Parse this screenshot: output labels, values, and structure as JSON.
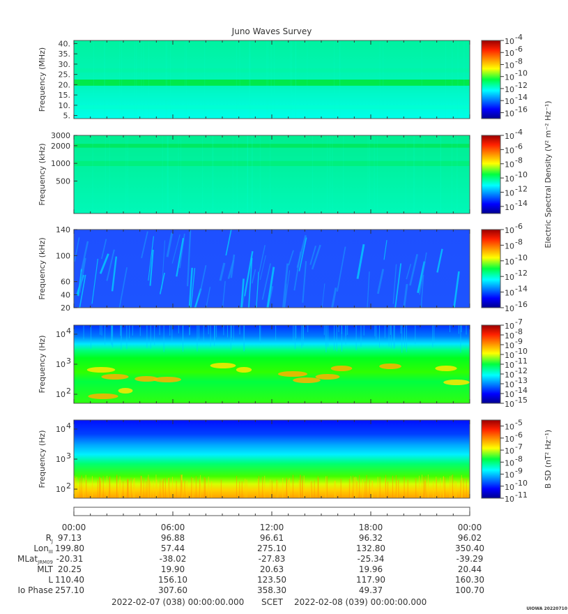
{
  "title": "Juno Waves Survey",
  "footer": {
    "start": "2022-02-07 (038) 00:00:00.000",
    "scet": "SCET",
    "end": "2022-02-08 (039) 00:00:00.000",
    "stamp": "UIOWA 20220710"
  },
  "chart_data": [
    {
      "type": "heatmap",
      "ylabel": "Frequency (MHz)",
      "yticks": [
        "40.",
        "35.",
        "30.",
        "25.",
        "20.",
        "15.",
        "10.",
        "5."
      ],
      "ytick_values": [
        40,
        35,
        30,
        25,
        20,
        15,
        10,
        5
      ],
      "ylim": [
        3.5,
        41.5
      ],
      "yscale": "linear",
      "colorbar": {
        "labels": [
          "10",
          "10",
          "10",
          "10",
          "10",
          "10",
          "10"
        ],
        "exponents": [
          "-4",
          "-6",
          "-8",
          "-10",
          "-12",
          "-14",
          "-16"
        ],
        "range": [
          -17,
          -4
        ]
      },
      "bands": [
        {
          "lo": 19.5,
          "hi": 22.5,
          "color": "#00e83e"
        },
        {
          "lo": 26,
          "hi": 28,
          "color": "#00f6a6"
        },
        {
          "lo": 8,
          "hi": 10,
          "color": "#00ffd2"
        }
      ]
    },
    {
      "type": "heatmap",
      "ylabel": "Frequency (kHz)",
      "yticks": [
        "3000",
        "2000",
        "1000",
        "500"
      ],
      "ytick_values": [
        3000,
        2000,
        1000,
        500
      ],
      "ylim": [
        140,
        3000
      ],
      "yscale": "log",
      "colorbar": {
        "labels": [
          "10",
          "10",
          "10",
          "10",
          "10",
          "10"
        ],
        "exponents": [
          "-4",
          "-6",
          "-8",
          "-10",
          "-12",
          "-14"
        ],
        "range": [
          -15,
          -4
        ],
        "title": "Electric Spectral Density (V² m⁻² Hz⁻¹)"
      },
      "bands": [
        {
          "lo": 1850,
          "hi": 2150,
          "color": "#00e85a"
        },
        {
          "lo": 900,
          "hi": 1100,
          "color": "#00ef7a"
        }
      ]
    },
    {
      "type": "heatmap",
      "ylabel": "Frequency (kHz)",
      "yticks": [
        "140",
        "100",
        "60",
        "40",
        "20"
      ],
      "ytick_values": [
        140,
        100,
        60,
        40,
        20
      ],
      "ylim": [
        20,
        140
      ],
      "yscale": "linear",
      "colorbar": {
        "labels": [
          "10",
          "10",
          "10",
          "10",
          "10",
          "10"
        ],
        "exponents": [
          "-6",
          "-8",
          "-10",
          "-12",
          "-14",
          "-16"
        ],
        "range": [
          -16,
          -6
        ]
      }
    },
    {
      "type": "heatmap",
      "ylabel": "Frequency (Hz)",
      "yticks": [
        "10",
        "10",
        "10"
      ],
      "ytick_exponents": [
        "4",
        "3",
        "2"
      ],
      "ytick_values": [
        10000,
        1000,
        100
      ],
      "ylim": [
        50,
        20000
      ],
      "yscale": "log",
      "colorbar": {
        "labels": [
          "10",
          "10",
          "10",
          "10",
          "10",
          "10",
          "10",
          "10",
          "10"
        ],
        "exponents": [
          "-7",
          "-8",
          "-9",
          "-10",
          "-11",
          "-12",
          "-13",
          "-14",
          "-15"
        ],
        "range": [
          -15,
          -7
        ]
      }
    },
    {
      "type": "heatmap",
      "ylabel": "Frequency (Hz)",
      "yticks": [
        "10",
        "10",
        "10"
      ],
      "ytick_exponents": [
        "4",
        "3",
        "2"
      ],
      "ytick_values": [
        10000,
        1000,
        100
      ],
      "ylim": [
        50,
        20000
      ],
      "yscale": "log",
      "colorbar": {
        "labels": [
          "10",
          "10",
          "10",
          "10",
          "10",
          "10",
          "10"
        ],
        "exponents": [
          "-5",
          "-6",
          "-7",
          "-8",
          "-9",
          "-10",
          "-11"
        ],
        "range": [
          -11,
          -4.5
        ],
        "title": "B SD (nT² Hz⁻¹)"
      }
    }
  ],
  "time_axis": {
    "ticks": [
      "00:00",
      "06:00",
      "12:00",
      "18:00",
      "00:00"
    ],
    "tick_hours": [
      0,
      6,
      12,
      18,
      24
    ]
  },
  "ephemeris": [
    {
      "label": "R",
      "sub": "J",
      "values": [
        "97.13",
        "96.88",
        "96.61",
        "96.32",
        "96.02"
      ]
    },
    {
      "label": "Lon",
      "sub": "III",
      "values": [
        "199.80",
        "57.44",
        "275.10",
        "132.80",
        "350.40"
      ]
    },
    {
      "label": "MLat",
      "sub": "JRM09",
      "values": [
        "-20.31",
        "-38.02",
        "-27.83",
        "-25.34",
        "-39.29"
      ]
    },
    {
      "label": "MLT",
      "sub": "",
      "values": [
        "20.25",
        "19.90",
        "20.63",
        "19.96",
        "20.44"
      ]
    },
    {
      "label": "L",
      "sub": "",
      "values": [
        "110.40",
        "156.10",
        "123.50",
        "117.90",
        "160.30"
      ]
    },
    {
      "label": "Io Phase",
      "sub": "",
      "values": [
        "257.10",
        "307.60",
        "358.30",
        "49.37",
        "100.70"
      ]
    }
  ]
}
